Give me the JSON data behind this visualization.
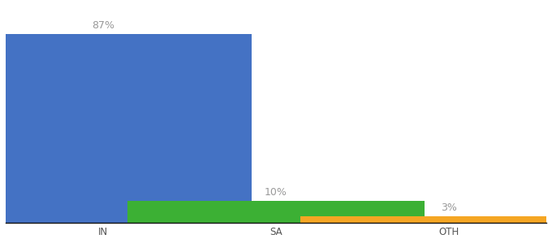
{
  "categories": [
    "IN",
    "SA",
    "OTH"
  ],
  "values": [
    87,
    10,
    3
  ],
  "labels": [
    "87%",
    "10%",
    "3%"
  ],
  "bar_colors": [
    "#4472c4",
    "#3cb034",
    "#f5a623"
  ],
  "background_color": "#ffffff",
  "ylim": [
    0,
    100
  ],
  "bar_width": 0.55,
  "label_fontsize": 9,
  "tick_fontsize": 8.5,
  "x_positions": [
    0.18,
    0.5,
    0.82
  ]
}
